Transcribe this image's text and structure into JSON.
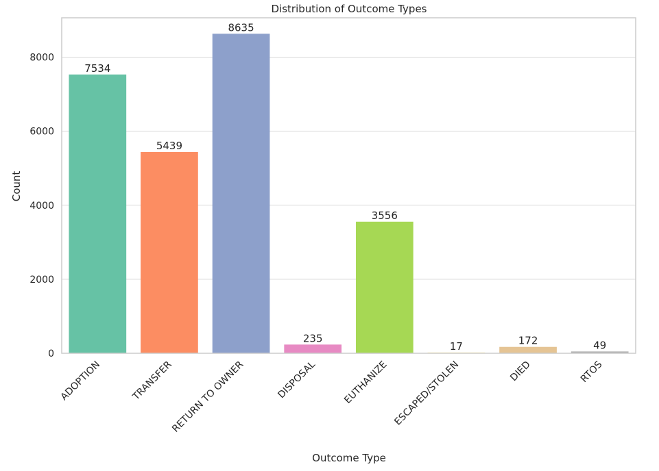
{
  "chart_data": {
    "type": "bar",
    "title": "Distribution of Outcome Types",
    "xlabel": "Outcome Type",
    "ylabel": "Count",
    "categories": [
      "ADOPTION",
      "TRANSFER",
      "RETURN TO OWNER",
      "DISPOSAL",
      "EUTHANIZE",
      "ESCAPED/STOLEN",
      "DIED",
      "RTOS"
    ],
    "values": [
      7534,
      5439,
      8635,
      235,
      3556,
      17,
      172,
      49
    ],
    "colors": [
      "#66c2a5",
      "#fc8d62",
      "#8da0cb",
      "#e78ac3",
      "#a6d854",
      "#ffd92f",
      "#e5c494",
      "#b3b3b3"
    ],
    "ylim": [
      0,
      9066
    ],
    "yticks": [
      0,
      2000,
      4000,
      6000,
      8000
    ],
    "grid": "horizontal",
    "background": "#ffffff",
    "gridColor": "#d9d9d9",
    "spineColor": "#cccccc",
    "labelColor": "#262626"
  }
}
